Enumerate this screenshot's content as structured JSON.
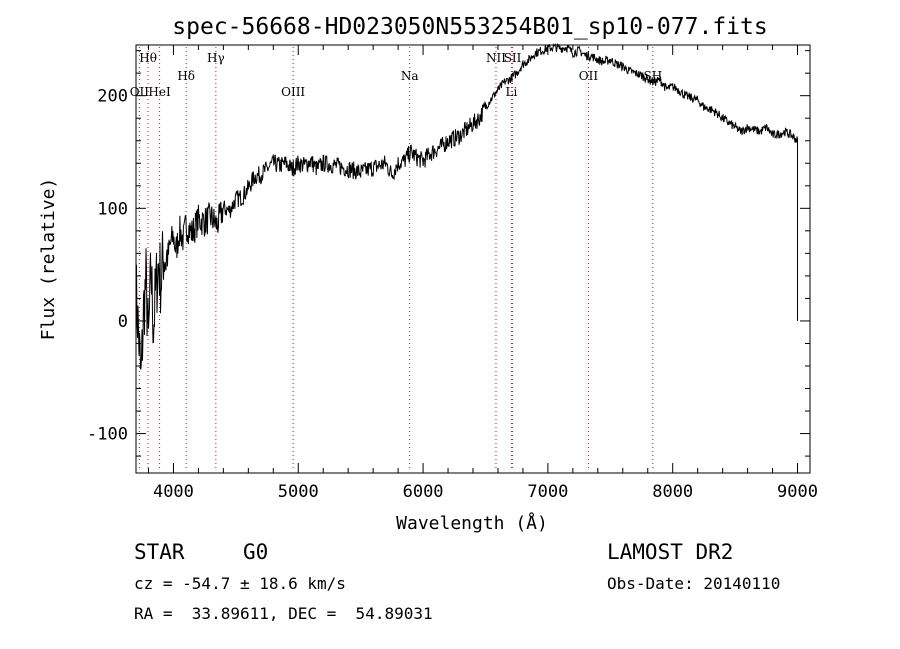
{
  "chart_data": {
    "type": "line",
    "title": "spec-56668-HD023050N553254B01_sp10-077.fits",
    "xlabel": "Wavelength (Å)",
    "ylabel": "Flux (relative)",
    "xlim": [
      3700,
      9100
    ],
    "ylim": [
      -135,
      245
    ],
    "x_ticks": [
      4000,
      5000,
      6000,
      7000,
      8000,
      9000
    ],
    "y_ticks": [
      -100,
      0,
      100,
      200
    ],
    "grid": false,
    "series": [
      {
        "color": "#000000",
        "points": [
          [
            3700,
            28
          ],
          [
            3720,
            -10
          ],
          [
            3740,
            -55
          ],
          [
            3760,
            8
          ],
          [
            3780,
            35
          ],
          [
            3800,
            -20
          ],
          [
            3820,
            45
          ],
          [
            3840,
            -5
          ],
          [
            3860,
            30
          ],
          [
            3880,
            50
          ],
          [
            3900,
            35
          ],
          [
            3920,
            60
          ],
          [
            3950,
            55
          ],
          [
            3980,
            70
          ],
          [
            4000,
            75
          ],
          [
            4020,
            62
          ],
          [
            4050,
            80
          ],
          [
            4080,
            72
          ],
          [
            4100,
            85
          ],
          [
            4150,
            78
          ],
          [
            4200,
            90
          ],
          [
            4250,
            88
          ],
          [
            4300,
            92
          ],
          [
            4350,
            85
          ],
          [
            4400,
            100
          ],
          [
            4450,
            98
          ],
          [
            4500,
            108
          ],
          [
            4550,
            110
          ],
          [
            4600,
            118
          ],
          [
            4650,
            128
          ],
          [
            4700,
            130
          ],
          [
            4750,
            135
          ],
          [
            4800,
            140
          ],
          [
            4850,
            138
          ],
          [
            4900,
            140
          ],
          [
            4950,
            135
          ],
          [
            5000,
            140
          ],
          [
            5050,
            138
          ],
          [
            5100,
            142
          ],
          [
            5150,
            135
          ],
          [
            5200,
            140
          ],
          [
            5300,
            138
          ],
          [
            5400,
            135
          ],
          [
            5500,
            132
          ],
          [
            5600,
            136
          ],
          [
            5700,
            140
          ],
          [
            5750,
            130
          ],
          [
            5800,
            140
          ],
          [
            5850,
            142
          ],
          [
            5900,
            150
          ],
          [
            5950,
            145
          ],
          [
            6000,
            142
          ],
          [
            6050,
            148
          ],
          [
            6100,
            152
          ],
          [
            6150,
            155
          ],
          [
            6200,
            160
          ],
          [
            6250,
            162
          ],
          [
            6300,
            165
          ],
          [
            6350,
            170
          ],
          [
            6400,
            175
          ],
          [
            6450,
            180
          ],
          [
            6500,
            190
          ],
          [
            6550,
            198
          ],
          [
            6600,
            205
          ],
          [
            6650,
            212
          ],
          [
            6700,
            215
          ],
          [
            6750,
            220
          ],
          [
            6800,
            228
          ],
          [
            6850,
            232
          ],
          [
            6900,
            238
          ],
          [
            6950,
            240
          ],
          [
            7000,
            242
          ],
          [
            7050,
            243
          ],
          [
            7100,
            242
          ],
          [
            7150,
            243
          ],
          [
            7200,
            238
          ],
          [
            7250,
            240
          ],
          [
            7300,
            236
          ],
          [
            7350,
            235
          ],
          [
            7400,
            232
          ],
          [
            7450,
            230
          ],
          [
            7500,
            232
          ],
          [
            7550,
            228
          ],
          [
            7600,
            226
          ],
          [
            7650,
            222
          ],
          [
            7700,
            220
          ],
          [
            7750,
            218
          ],
          [
            7800,
            215
          ],
          [
            7850,
            212
          ],
          [
            7900,
            214
          ],
          [
            7950,
            206
          ],
          [
            8000,
            208
          ],
          [
            8050,
            205
          ],
          [
            8100,
            200
          ],
          [
            8150,
            198
          ],
          [
            8200,
            196
          ],
          [
            8250,
            190
          ],
          [
            8300,
            188
          ],
          [
            8350,
            185
          ],
          [
            8400,
            180
          ],
          [
            8450,
            176
          ],
          [
            8500,
            172
          ],
          [
            8550,
            168
          ],
          [
            8600,
            172
          ],
          [
            8650,
            170
          ],
          [
            8700,
            168
          ],
          [
            8750,
            172
          ],
          [
            8800,
            165
          ],
          [
            8850,
            166
          ],
          [
            8900,
            168
          ],
          [
            8950,
            165
          ],
          [
            9000,
            160
          ]
        ]
      }
    ],
    "lines": [
      {
        "label": "Hθ",
        "x": 3797,
        "row": 1
      },
      {
        "label": "OII",
        "x": 3727,
        "row": 3
      },
      {
        "label": "HeI",
        "x": 3889,
        "row": 3
      },
      {
        "label": "Hδ",
        "x": 4102,
        "row": 2
      },
      {
        "label": "Hγ",
        "x": 4340,
        "row": 1
      },
      {
        "label": "OIII",
        "x": 4959,
        "row": 3
      },
      {
        "label": "Na",
        "x": 5893,
        "row": 2
      },
      {
        "label": "NII",
        "x": 6584,
        "row": 1
      },
      {
        "label": "SII",
        "x": 6717,
        "row": 1
      },
      {
        "label": "Li",
        "x": 6708,
        "row": 3
      },
      {
        "label": "OII",
        "x": 7325,
        "row": 2
      },
      {
        "label": "SH",
        "x": 7841,
        "row": 2
      }
    ],
    "line_color": "#b22222"
  },
  "info": {
    "class": "STAR",
    "subclass": "G0",
    "survey": "LAMOST DR2",
    "cz": "cz = -54.7 ± 18.6 km/s",
    "obs_date": "Obs-Date: 20140110",
    "radec": "RA =  33.89611, DEC =  54.89031"
  }
}
